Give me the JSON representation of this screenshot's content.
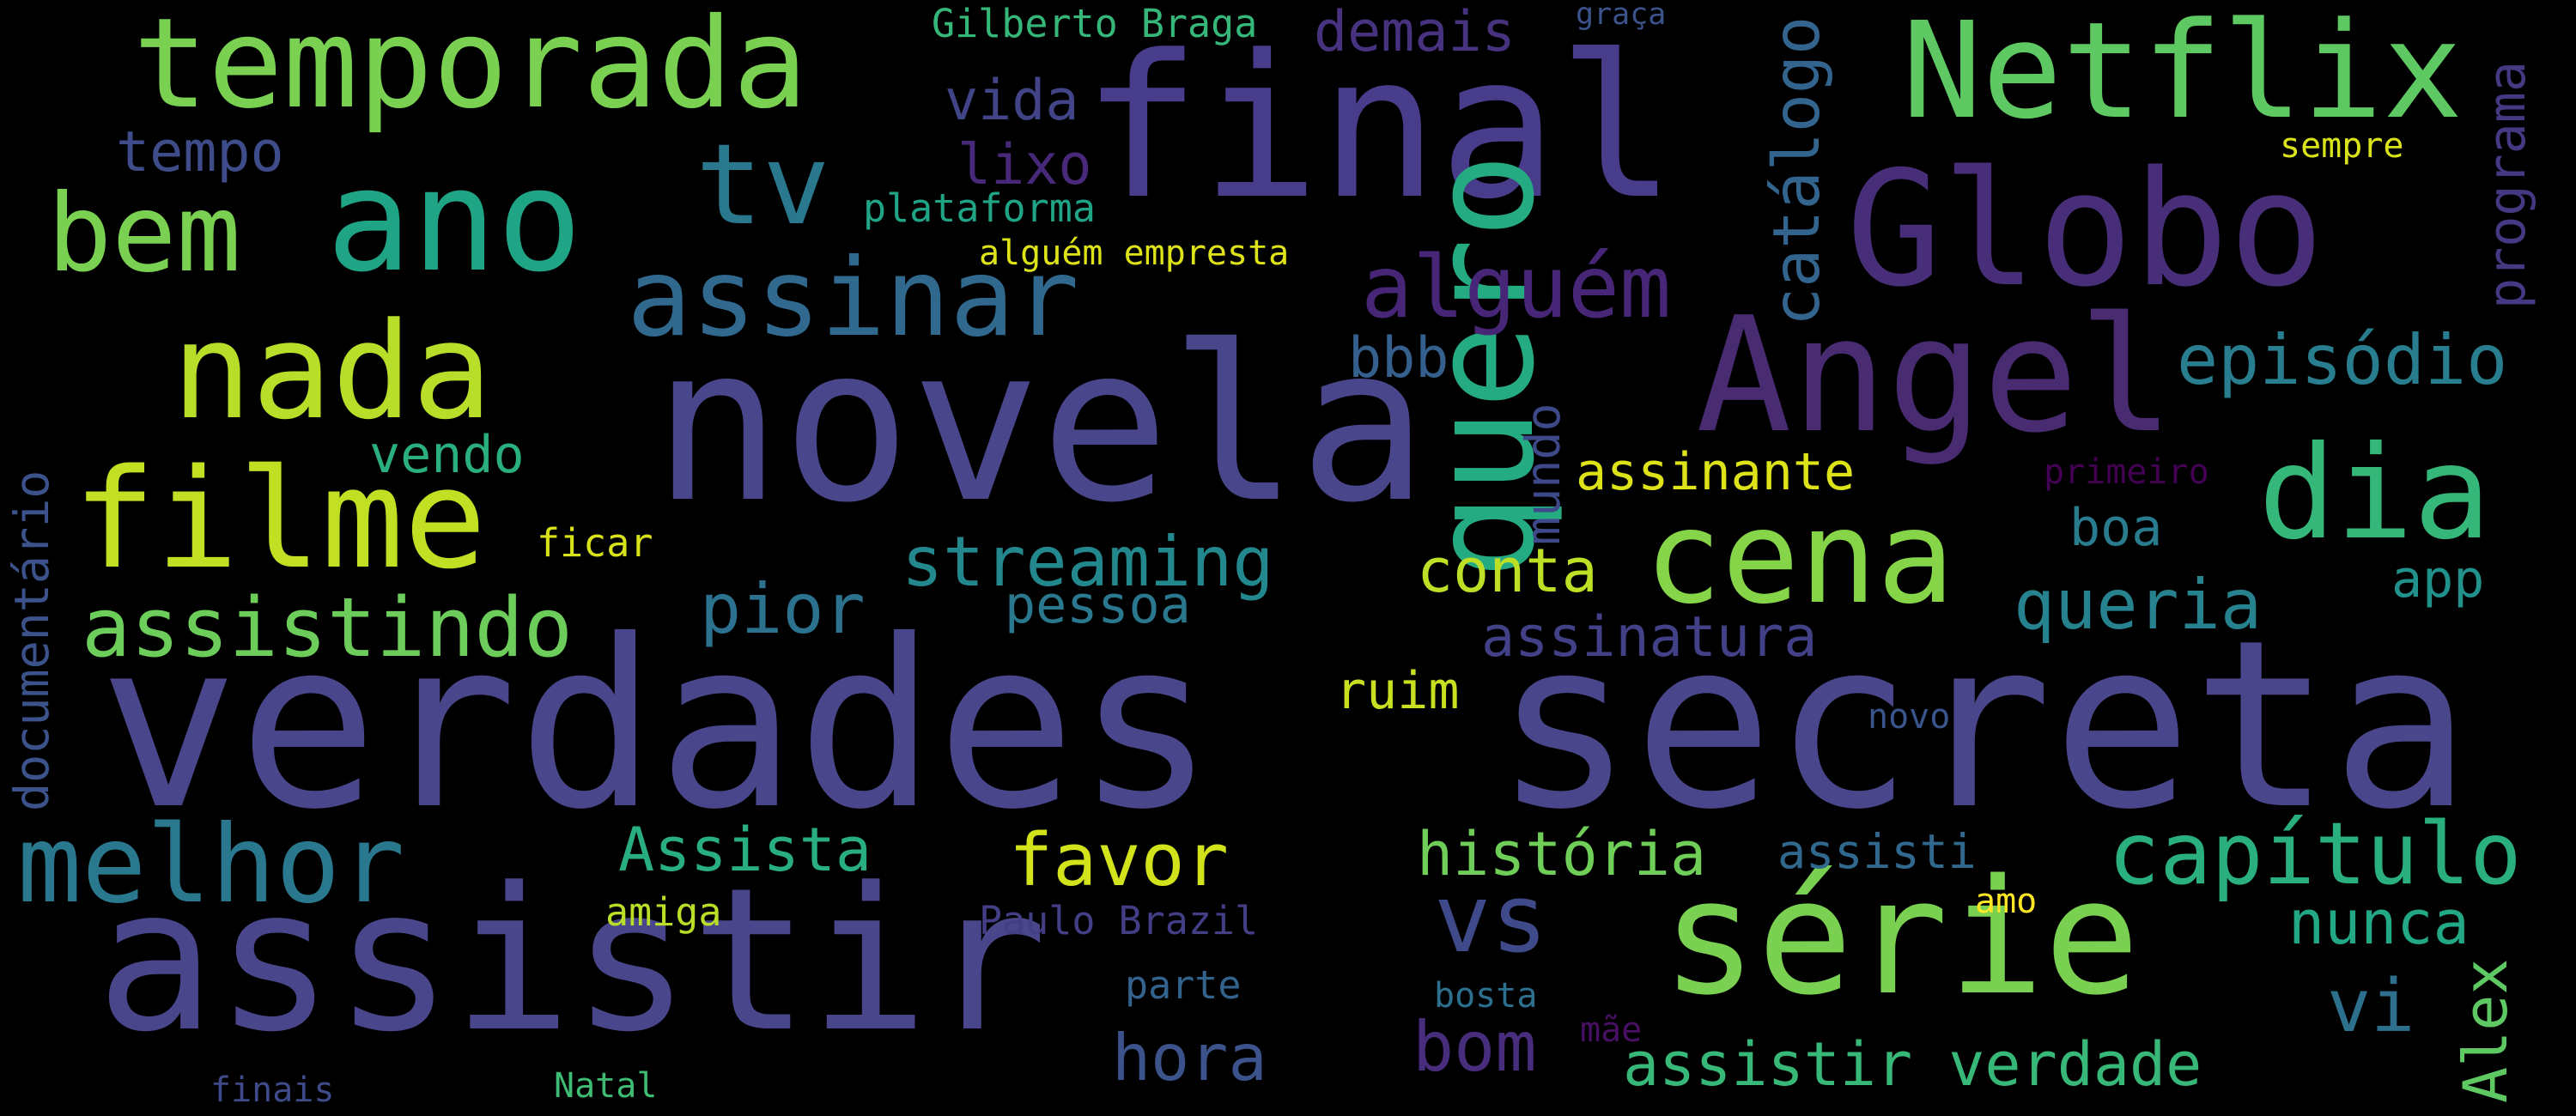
{
  "background": "#000000",
  "words": [
    {
      "text": "verdades",
      "color": "#4a468b"
    },
    {
      "text": "secreta",
      "color": "#4a468b"
    },
    {
      "text": "novela",
      "color": "#4a468b"
    },
    {
      "text": "assistir",
      "color": "#4a468b"
    },
    {
      "text": "final",
      "color": "#483d8b"
    },
    {
      "text": "Globo",
      "color": "#482e78"
    },
    {
      "text": "Angel",
      "color": "#482b70"
    },
    {
      "text": "Netflix",
      "color": "#5ec962"
    },
    {
      "text": "temporada",
      "color": "#7ad151"
    },
    {
      "text": "série",
      "color": "#7ad151"
    },
    {
      "text": "ano",
      "color": "#20a486"
    },
    {
      "text": "filme",
      "color": "#c2df23"
    },
    {
      "text": "nada",
      "color": "#b8de29"
    },
    {
      "text": "quero",
      "color": "#25ab82"
    },
    {
      "text": "cena",
      "color": "#86d549"
    },
    {
      "text": "dia",
      "color": "#35b779"
    },
    {
      "text": "tv",
      "color": "#2a788e"
    },
    {
      "text": "assinar",
      "color": "#31688e"
    },
    {
      "text": "bem",
      "color": "#7ad151"
    },
    {
      "text": "melhor",
      "color": "#2a788e"
    },
    {
      "text": "capítulo",
      "color": "#2ab07f"
    },
    {
      "text": "assistindo",
      "color": "#6ccd5a"
    },
    {
      "text": "alguém",
      "color": "#482677"
    },
    {
      "text": "episódio",
      "color": "#287d8e"
    },
    {
      "text": "vs",
      "color": "#3e4a89"
    },
    {
      "text": "streaming",
      "color": "#23888e"
    },
    {
      "text": "assistir verdade",
      "color": "#37b878"
    },
    {
      "text": "história",
      "color": "#6ece58"
    },
    {
      "text": "queria",
      "color": "#26828e"
    },
    {
      "text": "Assista",
      "color": "#29af7f"
    },
    {
      "text": "favor",
      "color": "#d2e21b"
    },
    {
      "text": "pior",
      "color": "#2c728e"
    },
    {
      "text": "conta",
      "color": "#bddf26"
    },
    {
      "text": "catálogo",
      "color": "#32648e"
    },
    {
      "text": "programa",
      "color": "#443983"
    },
    {
      "text": "vi",
      "color": "#2d708e"
    },
    {
      "text": "bom",
      "color": "#472d7b"
    },
    {
      "text": "hora",
      "color": "#3b528b"
    },
    {
      "text": "assinatura",
      "color": "#424086"
    },
    {
      "text": "documentário",
      "color": "#3b528b"
    },
    {
      "text": "Alex",
      "color": "#5ec962"
    },
    {
      "text": "nunca",
      "color": "#22a884"
    },
    {
      "text": "assinante",
      "color": "#dde318"
    },
    {
      "text": "pessoa",
      "color": "#2a788e"
    },
    {
      "text": "demais",
      "color": "#46327e"
    },
    {
      "text": "tempo",
      "color": "#3e4c8a"
    },
    {
      "text": "vida",
      "color": "#414487"
    },
    {
      "text": "lixo",
      "color": "#482878"
    },
    {
      "text": "app",
      "color": "#21918c"
    },
    {
      "text": "mundo",
      "color": "#3e4989"
    },
    {
      "text": "bbb",
      "color": "#355f8d"
    },
    {
      "text": "assisti",
      "color": "#31688e"
    },
    {
      "text": "ruim",
      "color": "#c8e020"
    },
    {
      "text": "vendo",
      "color": "#2ab07f"
    },
    {
      "text": "boa",
      "color": "#287c8e"
    },
    {
      "text": "plataforma",
      "color": "#20a486"
    },
    {
      "text": "Gilberto Braga",
      "color": "#35b779"
    },
    {
      "text": "alguém empresta",
      "color": "#dde318"
    },
    {
      "text": "ficar",
      "color": "#d8e219"
    },
    {
      "text": "amiga",
      "color": "#bade28"
    },
    {
      "text": "Paulo Brazil",
      "color": "#433e85"
    },
    {
      "text": "parte",
      "color": "#33638d"
    },
    {
      "text": "bosta",
      "color": "#2d708e"
    },
    {
      "text": "mãe",
      "color": "#471063"
    },
    {
      "text": "amo",
      "color": "#fde725"
    },
    {
      "text": "finais",
      "color": "#3e4a89"
    },
    {
      "text": "Natal",
      "color": "#3fbc73"
    },
    {
      "text": "graça",
      "color": "#3b528b"
    },
    {
      "text": "sempre",
      "color": "#dae319"
    },
    {
      "text": "primeiro",
      "color": "#440154"
    },
    {
      "text": "novo",
      "color": "#39558c"
    }
  ]
}
